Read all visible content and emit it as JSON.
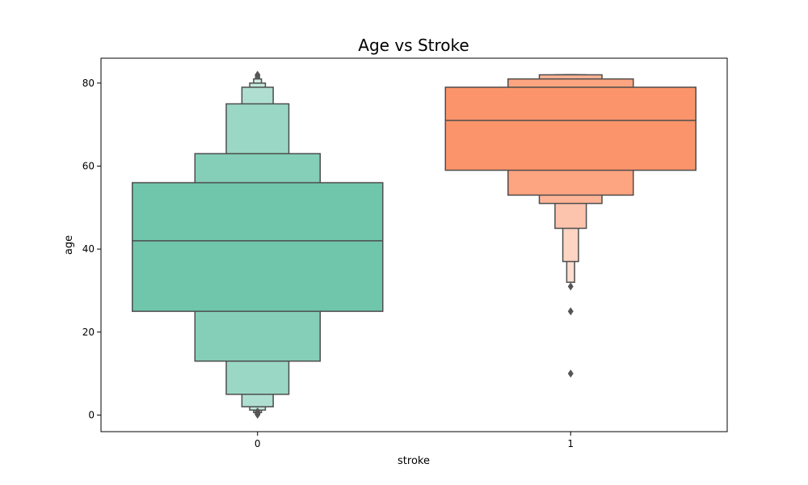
{
  "chart_data": {
    "type": "boxen",
    "title": "Age vs Stroke",
    "xlabel": "stroke",
    "ylabel": "age",
    "categories": [
      "0",
      "1"
    ],
    "ylim": [
      -4,
      86
    ],
    "yticks": [
      0,
      20,
      40,
      60,
      80
    ],
    "grid": false,
    "series": [
      {
        "category": "0",
        "color": "#66c2a5",
        "median": 42,
        "boxes": [
          {
            "lo": 25,
            "hi": 56,
            "width": 0.8
          },
          {
            "lo": 13,
            "hi": 63,
            "width": 0.4
          },
          {
            "lo": 5,
            "hi": 75,
            "width": 0.2
          },
          {
            "lo": 2,
            "hi": 79,
            "width": 0.1
          },
          {
            "lo": 1.2,
            "hi": 80,
            "width": 0.05
          },
          {
            "lo": 0.6,
            "hi": 81,
            "width": 0.025
          },
          {
            "lo": 0.3,
            "hi": 81.5,
            "width": 0.0125
          }
        ],
        "outliers": [
          0.08,
          0.16,
          0.24,
          0.32,
          0.4,
          0.48,
          0.56,
          0.64,
          0.72,
          0.8,
          0.88,
          81.8,
          82
        ]
      },
      {
        "category": "1",
        "color": "#fc8d62",
        "median": 71,
        "boxes": [
          {
            "lo": 59,
            "hi": 79,
            "width": 0.8
          },
          {
            "lo": 53,
            "hi": 81,
            "width": 0.4
          },
          {
            "lo": 51,
            "hi": 82,
            "width": 0.2
          },
          {
            "lo": 45,
            "hi": 82,
            "width": 0.1
          },
          {
            "lo": 37,
            "hi": 82,
            "width": 0.05
          },
          {
            "lo": 32,
            "hi": 82,
            "width": 0.025
          }
        ],
        "outliers": [
          31,
          25,
          10
        ]
      }
    ]
  }
}
